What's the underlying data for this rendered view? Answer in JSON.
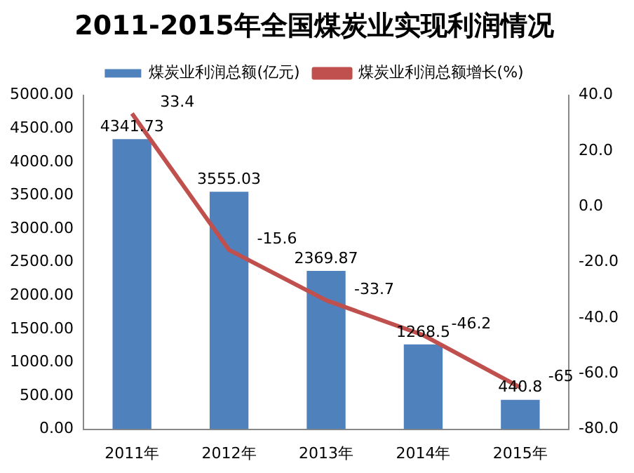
{
  "chart_data": {
    "type": "bar",
    "title": "2011-2015年全国煤炭业实现利润情况",
    "categories": [
      "2011年",
      "2012年",
      "2013年",
      "2014年",
      "2015年"
    ],
    "series": [
      {
        "name": "煤炭业利润总额(亿元)",
        "color": "#4f81bd",
        "values": [
          4341.73,
          3555.03,
          2369.87,
          1268.5,
          440.8
        ]
      },
      {
        "name": "煤炭业利润总额增长(%)",
        "type": "line",
        "axis": "y2",
        "color": "#c0504d",
        "values": [
          33.4,
          -15.6,
          -33.7,
          -46.2,
          -65
        ]
      }
    ],
    "ylim": [
      0,
      5000
    ],
    "yticks": [
      {
        "value": 0,
        "label": "0.00"
      },
      {
        "value": 500,
        "label": "500.00"
      },
      {
        "value": 1000,
        "label": "1000.00"
      },
      {
        "value": 1500,
        "label": "1500.00"
      },
      {
        "value": 2000,
        "label": "2000.00"
      },
      {
        "value": 2500,
        "label": "2500.00"
      },
      {
        "value": 3000,
        "label": "3000.00"
      },
      {
        "value": 3500,
        "label": "3500.00"
      },
      {
        "value": 4000,
        "label": "4000.00"
      },
      {
        "value": 4500,
        "label": "4500.00"
      },
      {
        "value": 5000,
        "label": "5000.00"
      }
    ],
    "y2lim": [
      -80,
      40
    ],
    "y2ticks": [
      {
        "value": -80,
        "label": "-80.0"
      },
      {
        "value": -60,
        "label": "-60.0"
      },
      {
        "value": -40,
        "label": "-40.0"
      },
      {
        "value": -20,
        "label": "-20.0"
      },
      {
        "value": 0,
        "label": "0.0"
      },
      {
        "value": 20,
        "label": "20.0"
      },
      {
        "value": 40,
        "label": "40.0"
      }
    ],
    "grid": false,
    "legend": "top",
    "marker": "none",
    "data_labels": true
  }
}
